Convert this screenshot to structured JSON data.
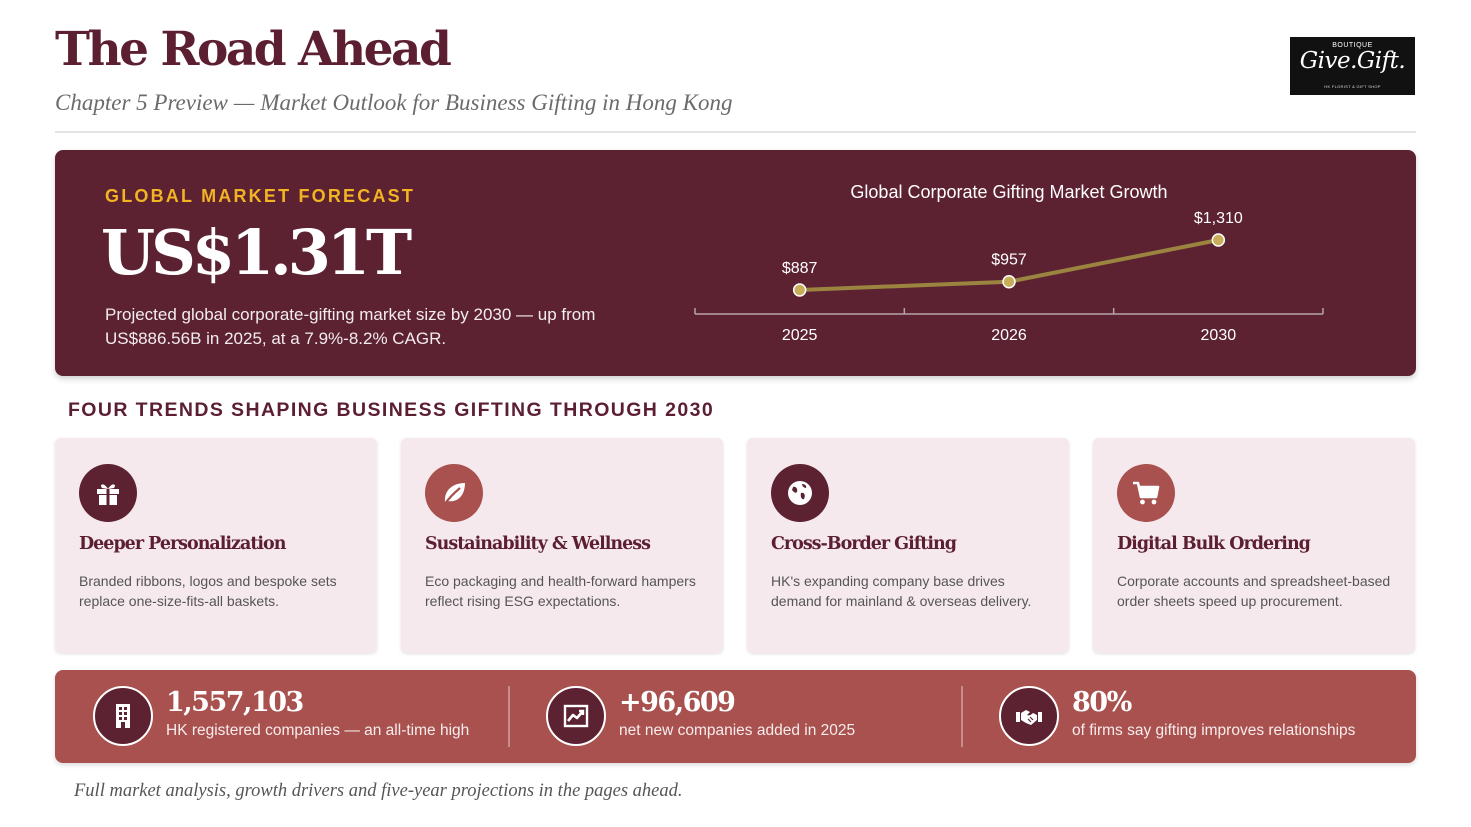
{
  "header": {
    "title": "The Road Ahead",
    "subtitle_left": "Chapter 5 Preview",
    "subtitle_sep": "—",
    "subtitle_right": "Market Outlook for Business Gifting in Hong Kong"
  },
  "logo": {
    "top": "BOUTIQUE",
    "name": "Give.Gift.",
    "tagline": "HK FLORIST & GIFT SHOP"
  },
  "hero": {
    "kicker": "GLOBAL MARKET FORECAST",
    "value": "US$1.31T",
    "description": "Projected global corporate-gifting market size by 2030 — up from US$886.56B in 2025, at a 7.9%-8.2% CAGR."
  },
  "chart_data": {
    "type": "line",
    "title": "Global Corporate Gifting Market Growth",
    "categories": [
      "2025",
      "2026",
      "2030"
    ],
    "series": [
      {
        "values": [
          887,
          957,
          1310
        ],
        "labels": [
          "$887",
          "$957",
          "$1,310"
        ]
      }
    ],
    "ylim": [
      0,
      1400
    ],
    "grid": false,
    "colors": {
      "line": "#9a843f",
      "point": "#c8ad5a",
      "text": "#ffffff",
      "axis": "#b7a3aa"
    }
  },
  "section": {
    "title": "FOUR TRENDS SHAPING BUSINESS GIFTING THROUGH 2030"
  },
  "trends": [
    {
      "title": "Deeper Personalization",
      "desc": "Branded ribbons, logos and bespoke sets replace one-size-fits-all baskets.",
      "icon": "gift-icon",
      "color": "#5c2232"
    },
    {
      "title": "Sustainability & Wellness",
      "desc": "Eco packaging and health-forward hampers reflect rising ESG expectations.",
      "icon": "leaf-icon",
      "color": "#a8514e"
    },
    {
      "title": "Cross-Border Gifting",
      "desc": "HK's expanding company base drives demand for mainland & overseas delivery.",
      "icon": "globe-icon",
      "color": "#5c2232"
    },
    {
      "title": "Digital Bulk Ordering",
      "desc": "Corporate accounts and spreadsheet-based order sheets speed up procurement.",
      "icon": "cart-icon",
      "color": "#a8514e"
    }
  ],
  "stats": [
    {
      "value": "1,557,103",
      "label": "HK registered companies — an all-time high",
      "icon": "building-icon"
    },
    {
      "value": "+96,609",
      "label": "net new companies added in 2025",
      "icon": "growth-chart-icon"
    },
    {
      "value": "80%",
      "label": "of firms say gifting improves relationships",
      "icon": "handshake-icon"
    }
  ],
  "footer": {
    "note": "Full market analysis, growth drivers and five-year projections in the pages ahead."
  },
  "colors": {
    "brand": "#5c1f32",
    "hero_bg": "#5c2232",
    "accent": "#f2b422",
    "stats_bg": "#a8514e",
    "card_bg": "#f6e9ed"
  }
}
